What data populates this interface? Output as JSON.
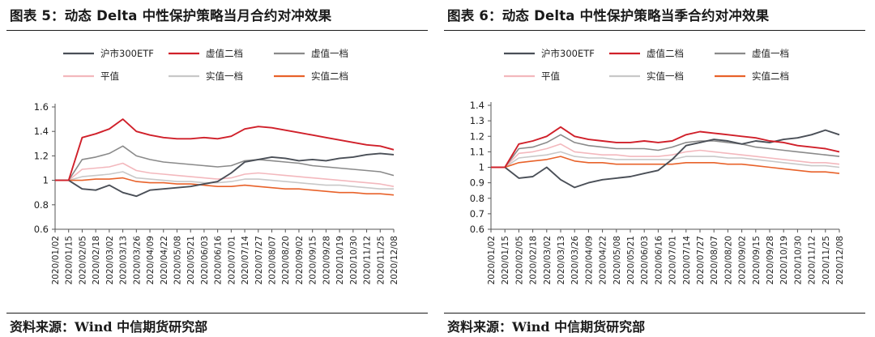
{
  "figure_left": {
    "title": "图表 5：动态 Delta 中性保护策略当月合约对冲效果",
    "source": "资料来源：Wind  中信期货研究部"
  },
  "figure_right": {
    "title": "图表 6：动态 Delta 中性保护策略当季合约对冲效果",
    "source": "资料来源：Wind  中信期货研究部"
  },
  "colors": {
    "沪市300ETF": "#4a4f57",
    "虚值二档": "#d0202a",
    "虚值一档": "#8a8a8a",
    "平值": "#f3b8bd",
    "实值一档": "#c8c8c8",
    "实值二档": "#e8622a"
  },
  "chart_data": [
    {
      "type": "line",
      "title": "动态 Delta 中性保护策略当月合约对冲效果",
      "ylim": [
        0.6,
        1.6
      ],
      "yticks": [
        0.6,
        0.8,
        1,
        1.2,
        1.4,
        1.6
      ],
      "ytick_labels": [
        "0.6",
        "0.8",
        "1",
        "1.2",
        "1.4",
        "1.6"
      ],
      "x": [
        "2020/01/02",
        "2020/01/15",
        "2020/02/05",
        "2020/02/18",
        "2020/03/02",
        "2020/03/13",
        "2020/03/26",
        "2020/04/09",
        "2020/04/22",
        "2020/05/08",
        "2020/05/21",
        "2020/06/03",
        "2020/06/16",
        "2020/07/01",
        "2020/07/14",
        "2020/07/27",
        "2020/08/07",
        "2020/08/20",
        "2020/09/02",
        "2020/09/15",
        "2020/09/28",
        "2020/10/19",
        "2020/10/30",
        "2020/11/12",
        "2020/11/25",
        "2020/12/08"
      ],
      "legend": [
        "沪市300ETF",
        "虚值二档",
        "虚值一档",
        "平值",
        "实值一档",
        "实值二档"
      ],
      "series": [
        {
          "name": "沪市300ETF",
          "values": [
            1.0,
            1.0,
            0.93,
            0.92,
            0.96,
            0.9,
            0.87,
            0.92,
            0.93,
            0.94,
            0.95,
            0.97,
            0.99,
            1.06,
            1.15,
            1.17,
            1.19,
            1.18,
            1.16,
            1.17,
            1.16,
            1.18,
            1.19,
            1.21,
            1.22,
            1.21
          ]
        },
        {
          "name": "虚值二档",
          "values": [
            1.0,
            1.0,
            1.35,
            1.38,
            1.42,
            1.5,
            1.4,
            1.37,
            1.35,
            1.34,
            1.34,
            1.35,
            1.34,
            1.36,
            1.42,
            1.44,
            1.43,
            1.41,
            1.39,
            1.37,
            1.35,
            1.33,
            1.31,
            1.29,
            1.28,
            1.25
          ]
        },
        {
          "name": "虚值一档",
          "values": [
            1.0,
            1.0,
            1.17,
            1.19,
            1.22,
            1.28,
            1.2,
            1.17,
            1.15,
            1.14,
            1.13,
            1.12,
            1.11,
            1.12,
            1.16,
            1.17,
            1.16,
            1.15,
            1.14,
            1.12,
            1.11,
            1.1,
            1.09,
            1.08,
            1.07,
            1.04
          ]
        },
        {
          "name": "平值",
          "values": [
            1.0,
            1.0,
            1.09,
            1.1,
            1.11,
            1.14,
            1.08,
            1.06,
            1.05,
            1.04,
            1.03,
            1.02,
            1.01,
            1.02,
            1.05,
            1.06,
            1.05,
            1.04,
            1.03,
            1.02,
            1.01,
            1.0,
            0.99,
            0.98,
            0.97,
            0.95
          ]
        },
        {
          "name": "实值一档",
          "values": [
            1.0,
            1.0,
            1.03,
            1.04,
            1.05,
            1.07,
            1.02,
            1.01,
            1.0,
            0.99,
            0.99,
            0.98,
            0.98,
            0.99,
            1.01,
            1.01,
            1.0,
            0.99,
            0.98,
            0.97,
            0.96,
            0.96,
            0.95,
            0.94,
            0.93,
            0.93
          ]
        },
        {
          "name": "实值二档",
          "values": [
            1.0,
            1.0,
            1.0,
            1.01,
            1.01,
            1.02,
            0.99,
            0.98,
            0.98,
            0.97,
            0.97,
            0.96,
            0.95,
            0.95,
            0.96,
            0.95,
            0.94,
            0.93,
            0.93,
            0.92,
            0.91,
            0.9,
            0.9,
            0.89,
            0.89,
            0.88
          ]
        }
      ]
    },
    {
      "type": "line",
      "title": "动态 Delta 中性保护策略当季合约对冲效果",
      "ylim": [
        0.6,
        1.4
      ],
      "yticks": [
        0.6,
        0.7,
        0.8,
        0.9,
        1.0,
        1.1,
        1.2,
        1.3,
        1.4
      ],
      "ytick_labels": [
        "0.6",
        "0.7",
        "0.8",
        "0.9",
        "1",
        "1.1",
        "1.2",
        "1.3",
        "1.4"
      ],
      "x": [
        "2020/01/02",
        "2020/01/15",
        "2020/02/05",
        "2020/02/18",
        "2020/03/02",
        "2020/03/13",
        "2020/03/26",
        "2020/04/09",
        "2020/04/22",
        "2020/05/08",
        "2020/05/21",
        "2020/06/03",
        "2020/06/16",
        "2020/07/01",
        "2020/07/14",
        "2020/07/27",
        "2020/08/07",
        "2020/08/20",
        "2020/09/02",
        "2020/09/15",
        "2020/09/28",
        "2020/10/19",
        "2020/10/30",
        "2020/11/12",
        "2020/11/25",
        "2020/12/08"
      ],
      "legend": [
        "沪市300ETF",
        "虚值二档",
        "虚值一档",
        "平值",
        "实值一档",
        "实值二档"
      ],
      "series": [
        {
          "name": "沪市300ETF",
          "values": [
            1.0,
            1.0,
            0.93,
            0.94,
            1.0,
            0.92,
            0.87,
            0.9,
            0.92,
            0.93,
            0.94,
            0.96,
            0.98,
            1.05,
            1.14,
            1.16,
            1.18,
            1.17,
            1.15,
            1.17,
            1.16,
            1.18,
            1.19,
            1.21,
            1.24,
            1.21
          ]
        },
        {
          "name": "虚值二档",
          "values": [
            1.0,
            1.0,
            1.15,
            1.17,
            1.2,
            1.26,
            1.2,
            1.18,
            1.17,
            1.16,
            1.16,
            1.17,
            1.16,
            1.17,
            1.21,
            1.23,
            1.22,
            1.21,
            1.2,
            1.19,
            1.17,
            1.16,
            1.14,
            1.13,
            1.12,
            1.1
          ]
        },
        {
          "name": "虚值一档",
          "values": [
            1.0,
            1.0,
            1.12,
            1.13,
            1.16,
            1.21,
            1.16,
            1.14,
            1.13,
            1.12,
            1.12,
            1.12,
            1.11,
            1.13,
            1.16,
            1.17,
            1.17,
            1.16,
            1.15,
            1.13,
            1.12,
            1.11,
            1.1,
            1.09,
            1.08,
            1.07
          ]
        },
        {
          "name": "平值",
          "values": [
            1.0,
            1.0,
            1.09,
            1.1,
            1.12,
            1.15,
            1.1,
            1.09,
            1.08,
            1.08,
            1.07,
            1.07,
            1.07,
            1.08,
            1.1,
            1.11,
            1.1,
            1.09,
            1.08,
            1.07,
            1.06,
            1.05,
            1.04,
            1.03,
            1.03,
            1.02
          ]
        },
        {
          "name": "实值一档",
          "values": [
            1.0,
            1.0,
            1.06,
            1.07,
            1.08,
            1.1,
            1.07,
            1.06,
            1.06,
            1.05,
            1.05,
            1.05,
            1.05,
            1.05,
            1.07,
            1.07,
            1.07,
            1.06,
            1.06,
            1.05,
            1.04,
            1.03,
            1.02,
            1.01,
            1.01,
            1.0
          ]
        },
        {
          "name": "实值二档",
          "values": [
            1.0,
            1.0,
            1.03,
            1.04,
            1.05,
            1.07,
            1.04,
            1.03,
            1.03,
            1.02,
            1.02,
            1.02,
            1.02,
            1.02,
            1.03,
            1.03,
            1.03,
            1.02,
            1.02,
            1.01,
            1.0,
            0.99,
            0.98,
            0.97,
            0.97,
            0.96
          ]
        }
      ]
    }
  ]
}
